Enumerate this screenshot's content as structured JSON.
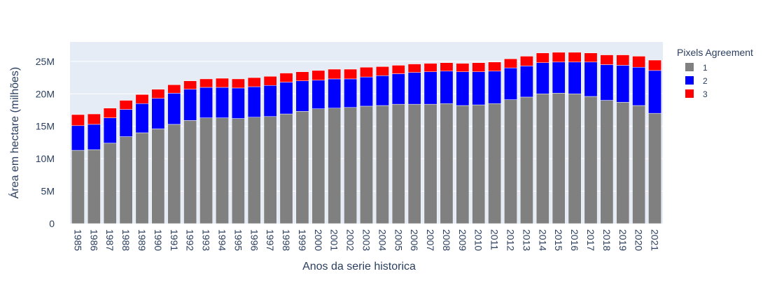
{
  "chart_data": {
    "type": "bar",
    "barmode": "stack",
    "title": "",
    "xlabel": "Anos da serie historica",
    "ylabel": "Área em hectare (milhões)",
    "ylim": [
      0,
      28000000
    ],
    "y_ticks": [
      0,
      5000000,
      10000000,
      15000000,
      20000000,
      25000000
    ],
    "y_tick_labels": [
      "0",
      "5M",
      "10M",
      "15M",
      "20M",
      "25M"
    ],
    "grid": true,
    "legend_position": "top-right",
    "legend_title": "Pixels Agreement",
    "categories": [
      "1985",
      "1986",
      "1987",
      "1988",
      "1989",
      "1990",
      "1991",
      "1992",
      "1993",
      "1994",
      "1995",
      "1996",
      "1997",
      "1998",
      "1999",
      "2000",
      "2001",
      "2002",
      "2003",
      "2004",
      "2005",
      "2006",
      "2007",
      "2008",
      "2009",
      "2010",
      "2011",
      "2012",
      "2013",
      "2014",
      "2015",
      "2016",
      "2017",
      "2018",
      "2019",
      "2020",
      "2021"
    ],
    "series": [
      {
        "name": "1",
        "color": "#808080",
        "values": [
          11300000,
          11400000,
          12400000,
          13400000,
          14000000,
          14600000,
          15300000,
          15900000,
          16300000,
          16300000,
          16200000,
          16400000,
          16500000,
          16900000,
          17300000,
          17700000,
          17800000,
          17900000,
          18100000,
          18200000,
          18400000,
          18400000,
          18400000,
          18500000,
          18200000,
          18300000,
          18500000,
          19100000,
          19500000,
          20000000,
          20100000,
          20000000,
          19600000,
          19000000,
          18700000,
          18200000,
          17000000
        ]
      },
      {
        "name": "2",
        "color": "#0000ff",
        "values": [
          3800000,
          3900000,
          3900000,
          4200000,
          4500000,
          4700000,
          4800000,
          4800000,
          4700000,
          4700000,
          4700000,
          4700000,
          4800000,
          4900000,
          4700000,
          4400000,
          4500000,
          4400000,
          4500000,
          4600000,
          4700000,
          4900000,
          5000000,
          5000000,
          5200000,
          5100000,
          5000000,
          4900000,
          4800000,
          4800000,
          4800000,
          4900000,
          5300000,
          5500000,
          5700000,
          5900000,
          6600000
        ]
      },
      {
        "name": "3",
        "color": "#ff0000",
        "values": [
          1700000,
          1600000,
          1500000,
          1400000,
          1400000,
          1400000,
          1300000,
          1300000,
          1300000,
          1400000,
          1400000,
          1400000,
          1400000,
          1400000,
          1400000,
          1500000,
          1500000,
          1500000,
          1500000,
          1400000,
          1300000,
          1300000,
          1300000,
          1300000,
          1300000,
          1400000,
          1400000,
          1400000,
          1500000,
          1500000,
          1500000,
          1500000,
          1400000,
          1500000,
          1600000,
          1700000,
          1600000
        ]
      }
    ]
  }
}
